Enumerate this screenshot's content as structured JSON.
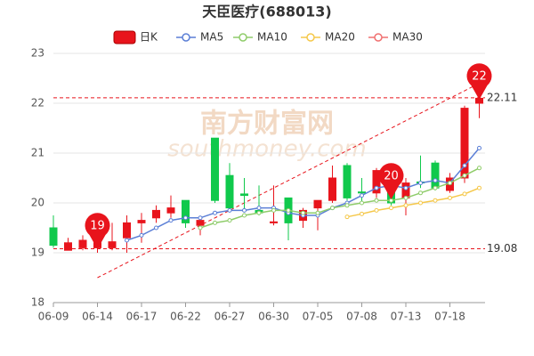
{
  "chart_data": {
    "type": "candlestick",
    "title": "天臣医疗(688013)",
    "watermark": {
      "cn": "南方财富网",
      "en": "southmoney.com"
    },
    "categories": [
      "06-09",
      null,
      null,
      "06-14",
      null,
      null,
      "06-17",
      null,
      null,
      "06-22",
      null,
      null,
      "06-27",
      null,
      null,
      "06-30",
      null,
      null,
      "07-05",
      null,
      null,
      "07-08",
      null,
      null,
      "07-13",
      null,
      null,
      "07-18",
      null,
      null
    ],
    "candles": {
      "name": "日K",
      "up_color": "#e8141c",
      "down_color": "#10c94c",
      "open": [
        19.5,
        19.05,
        19.1,
        19.1,
        19.1,
        19.3,
        19.6,
        19.7,
        19.8,
        20.05,
        19.55,
        21.3,
        20.55,
        20.18,
        19.85,
        19.6,
        20.1,
        19.65,
        19.9,
        20.05,
        20.75,
        20.22,
        20.2,
        20.5,
        20.1,
        20.42,
        20.8,
        20.25,
        20.5,
        22.0
      ],
      "high": [
        19.75,
        19.3,
        19.35,
        19.3,
        19.6,
        19.75,
        19.8,
        19.95,
        20.15,
        20.05,
        19.7,
        21.3,
        20.8,
        20.5,
        20.35,
        20.35,
        20.1,
        19.9,
        20.05,
        20.75,
        20.8,
        20.5,
        20.7,
        20.6,
        20.5,
        20.95,
        20.85,
        20.6,
        21.95,
        22.35
      ],
      "low": [
        19.1,
        19.05,
        19.05,
        19.0,
        19.05,
        19.0,
        19.2,
        19.6,
        19.7,
        19.5,
        19.35,
        20.0,
        19.9,
        19.85,
        19.75,
        19.55,
        19.25,
        19.5,
        19.45,
        20.0,
        20.05,
        20.0,
        20.1,
        19.95,
        19.75,
        20.3,
        20.25,
        20.2,
        20.4,
        21.7
      ],
      "close": [
        19.15,
        19.2,
        19.25,
        19.2,
        19.22,
        19.6,
        19.65,
        19.85,
        19.9,
        19.6,
        19.65,
        20.05,
        19.9,
        20.15,
        19.8,
        19.62,
        19.6,
        19.85,
        20.05,
        20.5,
        20.1,
        20.2,
        20.65,
        20.0,
        20.4,
        20.4,
        20.3,
        20.5,
        21.9,
        22.1
      ]
    },
    "series": [
      {
        "name": "MA5",
        "color": "#5b7fd6",
        "values": [
          null,
          null,
          null,
          null,
          null,
          19.25,
          19.35,
          19.5,
          19.65,
          19.7,
          19.7,
          19.8,
          19.85,
          19.85,
          19.9,
          19.9,
          19.8,
          19.75,
          19.75,
          19.9,
          20.0,
          20.15,
          20.3,
          20.35,
          20.3,
          20.4,
          20.45,
          20.4,
          20.75,
          21.1
        ]
      },
      {
        "name": "MA10",
        "color": "#8fcc6a",
        "values": [
          null,
          null,
          null,
          null,
          null,
          null,
          null,
          null,
          null,
          null,
          19.5,
          19.6,
          19.65,
          19.75,
          19.8,
          19.85,
          19.85,
          19.8,
          19.8,
          19.9,
          19.95,
          20.0,
          20.05,
          20.05,
          20.1,
          20.2,
          20.3,
          20.4,
          20.55,
          20.7
        ]
      },
      {
        "name": "MA20",
        "color": "#f5c84a",
        "values": [
          null,
          null,
          null,
          null,
          null,
          null,
          null,
          null,
          null,
          null,
          null,
          null,
          null,
          null,
          null,
          null,
          null,
          null,
          null,
          null,
          19.72,
          19.78,
          19.85,
          19.9,
          19.95,
          20.0,
          20.05,
          20.1,
          20.18,
          20.3
        ]
      },
      {
        "name": "MA30",
        "color": "#f07070",
        "values": [
          null,
          null,
          null,
          null,
          null,
          null,
          null,
          null,
          null,
          null,
          null,
          null,
          null,
          null,
          null,
          null,
          null,
          null,
          null,
          null,
          null,
          null,
          null,
          null,
          null,
          null,
          null,
          null,
          null,
          null
        ]
      }
    ],
    "hlines": [
      22.11,
      19.08
    ],
    "pins": [
      {
        "index": 3,
        "value": 19
      },
      {
        "index": 23,
        "value": 20
      },
      {
        "index": 29,
        "value": 22
      }
    ],
    "trendline": {
      "x": [
        3,
        29
      ],
      "y": [
        18.5,
        22.4
      ]
    },
    "ylim": [
      18,
      23
    ],
    "yticks": [
      18,
      19,
      20,
      21,
      22,
      23
    ],
    "grid": true
  }
}
